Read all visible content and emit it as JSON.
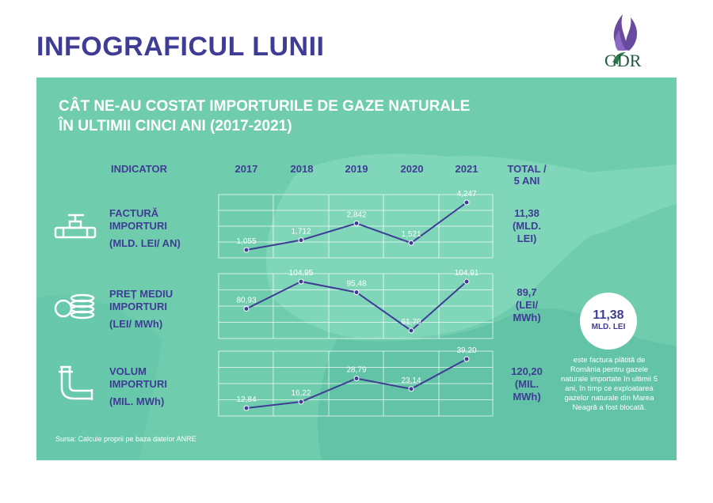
{
  "header": {
    "title": "INFOGRAFICUL LUNII",
    "logo_text": "GDR"
  },
  "panel": {
    "title_line1": "CÂT NE-AU COSTAT IMPORTURILE DE GAZE NATURALE",
    "title_line2": "ÎN ULTIMII CINCI ANI (2017-2021)",
    "indicator_header": "INDICATOR",
    "total_header_line1": "TOTAL /",
    "total_header_line2": "5 ANI"
  },
  "chart_data": {
    "type": "line",
    "categories": [
      "2017",
      "2018",
      "2019",
      "2020",
      "2021"
    ],
    "series": [
      {
        "name": "FACTURĂ IMPORTURI",
        "label_line1": "FACTURĂ",
        "label_line2": "IMPORTURI",
        "unit": "(MLD. LEI/ AN)",
        "values": [
          1.055,
          1.712,
          2.842,
          1.521,
          4.247
        ],
        "value_labels": [
          "1,055",
          "1,712",
          "2,842",
          "1,521",
          "4,247"
        ],
        "total_line1": "11,38",
        "total_line2": "(MLD.",
        "total_line3": "LEI)"
      },
      {
        "name": "PREȚ MEDIU IMPORTURI",
        "label_line1": "PREȚ MEDIU",
        "label_line2": "IMPORTURI",
        "unit": "(LEI/ MWh)",
        "values": [
          80.93,
          104.95,
          95.48,
          61.79,
          104.91
        ],
        "value_labels": [
          "80,93",
          "104,95",
          "95,48",
          "61,79",
          "104,91"
        ],
        "total_line1": "89,7",
        "total_line2": "(LEI/",
        "total_line3": "MWh)"
      },
      {
        "name": "VOLUM IMPORTURI",
        "label_line1": "VOLUM",
        "label_line2": "IMPORTURI",
        "unit": "(MIL. MWh)",
        "values": [
          12.84,
          16.22,
          28.79,
          23.14,
          39.2
        ],
        "value_labels": [
          "12,84",
          "16,22",
          "28,79",
          "23,14",
          "39,20"
        ],
        "total_line1": "120,20",
        "total_line2": "(MIL.",
        "total_line3": "MWh)"
      }
    ]
  },
  "callout": {
    "value": "11,38",
    "unit": "MLD. LEI",
    "text": "este factura plătită de România pentru gazele naturale importate în ultimii 5 ani, în timp ce exploatarea gazelor naturale din Marea Neagră a fost blocată."
  },
  "source": "Sursa: Calcule proprii pe baza datelor ANRE",
  "colors": {
    "brand": "#3f3c95",
    "panel": "#6fcdae",
    "line": "#3f3c95",
    "grid": "#ffffff"
  }
}
